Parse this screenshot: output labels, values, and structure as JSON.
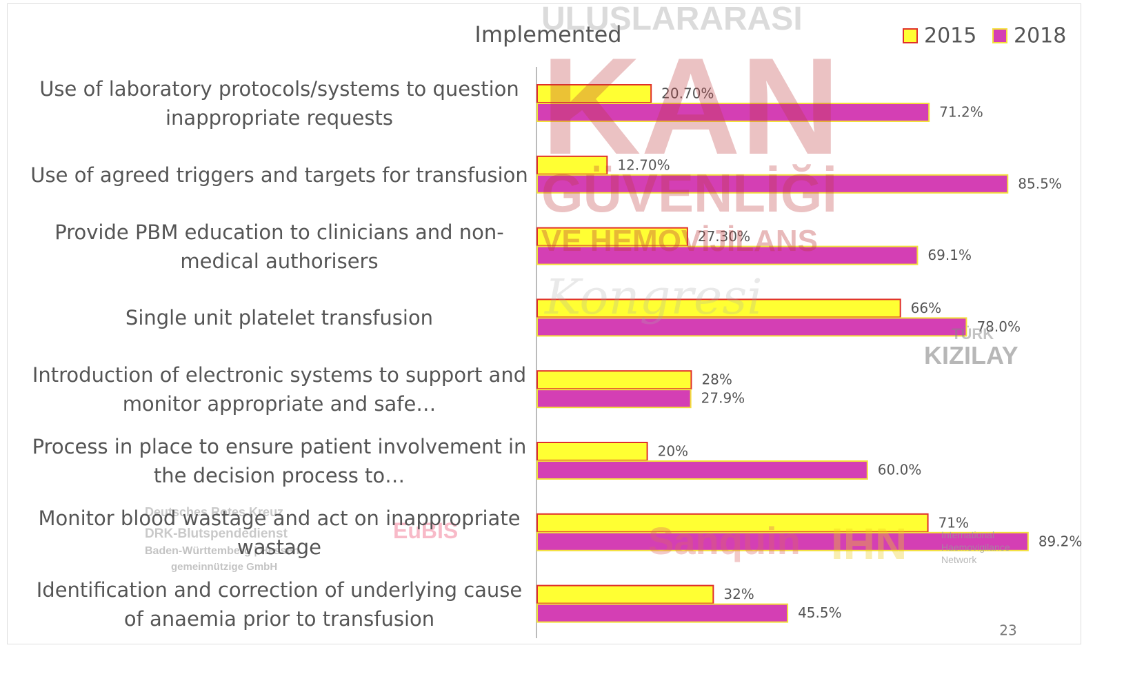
{
  "chart_data": {
    "type": "bar",
    "orientation": "horizontal",
    "title": "Implemented",
    "categories": [
      "Use of laboratory protocols/systems to question inappropriate requests",
      "Use of agreed triggers and targets for transfusion",
      "Provide PBM education to clinicians and non-medical authorisers",
      "Single unit platelet transfusion",
      "Introduction of electronic systems to support and monitor appropriate and safe…",
      "Process in place to ensure patient involvement in the decision process to…",
      "Monitor blood wastage and act on inappropriate wastage",
      "Identification and correction of underlying cause of anaemia prior to transfusion"
    ],
    "series": [
      {
        "name": "2015",
        "color": "#ffff33",
        "values": [
          20.7,
          12.7,
          27.3,
          66,
          28,
          20,
          71,
          32
        ],
        "value_labels": [
          "20.70%",
          "12.70%",
          "27.30%",
          "66%",
          "28%",
          "20%",
          "71%",
          "32%"
        ]
      },
      {
        "name": "2018",
        "color": "#d43fb4",
        "values": [
          71.2,
          85.5,
          69.1,
          78.0,
          27.9,
          60.0,
          89.2,
          45.5
        ],
        "value_labels": [
          "71.2%",
          "85.5%",
          "69.1%",
          "78.0%",
          "27.9%",
          "60.0%",
          "89.2%",
          "45.5%"
        ]
      }
    ],
    "legend": "top-right"
  },
  "page_number": "23",
  "watermarks": [
    "ULUSLARARASI",
    "KAN",
    "GÜVENLİĞİ",
    "VE HEMOVİJİLANS",
    "Kongresi",
    "TÜRK",
    "KIZILAY",
    "Sanquin",
    "IHN",
    "International Haemovigilance Network",
    "Deutsches Rotes Kreuz",
    "DRK-Blutspendedienst",
    "Baden-Württemberg | Hessen",
    "gemeinnützige GmbH",
    "EuBIS"
  ]
}
